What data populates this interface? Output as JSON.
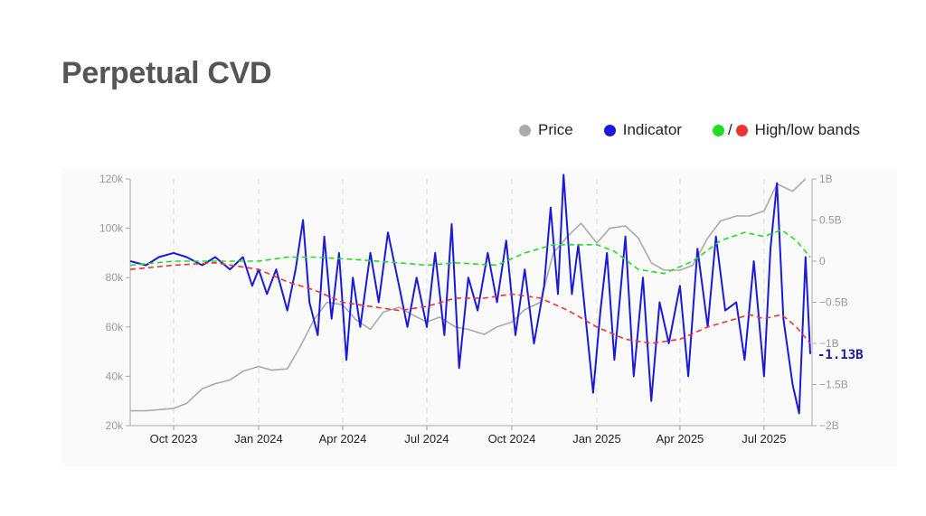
{
  "title": "Perpetual CVD",
  "legend": {
    "price": "Price",
    "indicator": "Indicator",
    "bands_sep": "/",
    "bands": "High/low bands",
    "colors": {
      "price": "#aaaaaa",
      "indicator": "#1a1adb",
      "high": "#22dd22",
      "low": "#ee3333"
    }
  },
  "chart_data": {
    "type": "line",
    "x_ticks": [
      "Oct 2023",
      "Jan 2024",
      "Apr 2024",
      "Jul 2024",
      "Oct 2024",
      "Jan 2025",
      "Apr 2025",
      "Jul 2025"
    ],
    "y_left_ticks": [
      "120k",
      "100k",
      "80k",
      "60k",
      "40k",
      "20k"
    ],
    "y_left_range": [
      20000,
      120000
    ],
    "y_right_ticks": [
      "1B",
      "0.5B",
      "0",
      "−0.5B",
      "−1B",
      "−1.5B",
      "−2B"
    ],
    "y_right_range": [
      -2,
      1
    ],
    "last_value_label": "-1.13B",
    "grid": "vertical dashed at month ticks",
    "series": [
      {
        "name": "Price",
        "axis": "left",
        "color": "#aaaaaa",
        "points": [
          [
            "2023-08-15",
            26000
          ],
          [
            "2023-09-01",
            26000
          ],
          [
            "2023-09-15",
            26500
          ],
          [
            "2023-10-01",
            27000
          ],
          [
            "2023-10-15",
            29000
          ],
          [
            "2023-11-01",
            35000
          ],
          [
            "2023-11-15",
            37000
          ],
          [
            "2023-12-01",
            38500
          ],
          [
            "2023-12-15",
            42000
          ],
          [
            "2024-01-01",
            44000
          ],
          [
            "2024-01-15",
            42500
          ],
          [
            "2024-02-01",
            43000
          ],
          [
            "2024-02-15",
            52000
          ],
          [
            "2024-03-01",
            63000
          ],
          [
            "2024-03-15",
            70000
          ],
          [
            "2024-04-01",
            69000
          ],
          [
            "2024-04-15",
            63000
          ],
          [
            "2024-05-01",
            59000
          ],
          [
            "2024-05-15",
            66000
          ],
          [
            "2024-06-01",
            68000
          ],
          [
            "2024-06-15",
            65000
          ],
          [
            "2024-07-01",
            62000
          ],
          [
            "2024-07-15",
            64000
          ],
          [
            "2024-08-01",
            60000
          ],
          [
            "2024-08-15",
            59000
          ],
          [
            "2024-09-01",
            57000
          ],
          [
            "2024-09-15",
            60000
          ],
          [
            "2024-10-01",
            62000
          ],
          [
            "2024-10-15",
            67000
          ],
          [
            "2024-11-01",
            70000
          ],
          [
            "2024-11-15",
            90000
          ],
          [
            "2024-12-01",
            97000
          ],
          [
            "2024-12-15",
            102000
          ],
          [
            "2025-01-01",
            94000
          ],
          [
            "2025-01-15",
            100000
          ],
          [
            "2025-02-01",
            101000
          ],
          [
            "2025-02-15",
            96000
          ],
          [
            "2025-03-01",
            86000
          ],
          [
            "2025-03-15",
            83000
          ],
          [
            "2025-04-01",
            83000
          ],
          [
            "2025-04-15",
            85000
          ],
          [
            "2025-05-01",
            96000
          ],
          [
            "2025-05-15",
            103000
          ],
          [
            "2025-06-01",
            105000
          ],
          [
            "2025-06-15",
            105000
          ],
          [
            "2025-07-01",
            107000
          ],
          [
            "2025-07-15",
            118000
          ],
          [
            "2025-08-01",
            115000
          ],
          [
            "2025-08-15",
            120000
          ]
        ]
      },
      {
        "name": "Indicator",
        "axis": "right",
        "color": "#1a1adb",
        "points": [
          [
            "2023-08-15",
            0
          ],
          [
            "2023-09-01",
            -0.05
          ],
          [
            "2023-09-15",
            0.05
          ],
          [
            "2023-10-01",
            0.1
          ],
          [
            "2023-10-15",
            0.05
          ],
          [
            "2023-11-01",
            -0.05
          ],
          [
            "2023-11-15",
            0.05
          ],
          [
            "2023-12-01",
            -0.1
          ],
          [
            "2023-12-15",
            0.05
          ],
          [
            "2023-12-25",
            -0.3
          ],
          [
            "2024-01-01",
            -0.1
          ],
          [
            "2024-01-10",
            -0.4
          ],
          [
            "2024-01-20",
            -0.1
          ],
          [
            "2024-02-01",
            -0.6
          ],
          [
            "2024-02-10",
            -0.1
          ],
          [
            "2024-02-18",
            0.5
          ],
          [
            "2024-02-25",
            -0.5
          ],
          [
            "2024-03-05",
            -0.9
          ],
          [
            "2024-03-12",
            0.3
          ],
          [
            "2024-03-20",
            -0.7
          ],
          [
            "2024-03-28",
            0.1
          ],
          [
            "2024-04-05",
            -1.2
          ],
          [
            "2024-04-12",
            -0.2
          ],
          [
            "2024-04-20",
            -0.8
          ],
          [
            "2024-05-01",
            0.1
          ],
          [
            "2024-05-10",
            -0.5
          ],
          [
            "2024-05-20",
            0.35
          ],
          [
            "2024-06-01",
            -0.3
          ],
          [
            "2024-06-10",
            -0.8
          ],
          [
            "2024-06-20",
            -0.2
          ],
          [
            "2024-07-01",
            -0.8
          ],
          [
            "2024-07-10",
            0.1
          ],
          [
            "2024-07-20",
            -0.9
          ],
          [
            "2024-07-28",
            0.45
          ],
          [
            "2024-08-05",
            -1.3
          ],
          [
            "2024-08-15",
            -0.2
          ],
          [
            "2024-08-25",
            -0.6
          ],
          [
            "2024-09-05",
            0.1
          ],
          [
            "2024-09-15",
            -0.5
          ],
          [
            "2024-09-25",
            0.25
          ],
          [
            "2024-10-05",
            -0.9
          ],
          [
            "2024-10-15",
            -0.1
          ],
          [
            "2024-10-25",
            -1.0
          ],
          [
            "2024-11-05",
            -0.3
          ],
          [
            "2024-11-12",
            0.65
          ],
          [
            "2024-11-20",
            -0.4
          ],
          [
            "2024-11-26",
            1.05
          ],
          [
            "2024-12-05",
            -0.4
          ],
          [
            "2024-12-12",
            0.2
          ],
          [
            "2024-12-20",
            -0.7
          ],
          [
            "2024-12-28",
            -1.6
          ],
          [
            "2025-01-05",
            -0.6
          ],
          [
            "2025-01-12",
            0.1
          ],
          [
            "2025-01-20",
            -1.2
          ],
          [
            "2025-02-01",
            0.3
          ],
          [
            "2025-02-10",
            -1.4
          ],
          [
            "2025-02-20",
            -0.2
          ],
          [
            "2025-03-01",
            -1.7
          ],
          [
            "2025-03-10",
            -0.5
          ],
          [
            "2025-03-20",
            -1.0
          ],
          [
            "2025-04-01",
            -0.3
          ],
          [
            "2025-04-10",
            -1.4
          ],
          [
            "2025-04-20",
            0.15
          ],
          [
            "2025-05-01",
            -0.8
          ],
          [
            "2025-05-10",
            0.3
          ],
          [
            "2025-05-20",
            -0.6
          ],
          [
            "2025-06-01",
            -0.5
          ],
          [
            "2025-06-10",
            -1.2
          ],
          [
            "2025-06-20",
            0.0
          ],
          [
            "2025-07-01",
            -1.4
          ],
          [
            "2025-07-08",
            0.15
          ],
          [
            "2025-07-15",
            0.95
          ],
          [
            "2025-07-22",
            -0.7
          ],
          [
            "2025-08-01",
            -1.5
          ],
          [
            "2025-08-08",
            -1.85
          ],
          [
            "2025-08-15",
            0.05
          ],
          [
            "2025-08-20",
            -1.13
          ]
        ]
      },
      {
        "name": "High band",
        "axis": "right",
        "color": "#22dd22",
        "points": [
          [
            "2023-08-15",
            -0.05
          ],
          [
            "2023-10-01",
            0.0
          ],
          [
            "2023-11-15",
            0.0
          ],
          [
            "2024-01-01",
            0.0
          ],
          [
            "2024-02-01",
            0.05
          ],
          [
            "2024-03-01",
            0.05
          ],
          [
            "2024-04-15",
            0.02
          ],
          [
            "2024-06-01",
            -0.02
          ],
          [
            "2024-07-01",
            -0.05
          ],
          [
            "2024-08-01",
            -0.02
          ],
          [
            "2024-09-15",
            -0.05
          ],
          [
            "2024-10-15",
            0.1
          ],
          [
            "2024-11-15",
            0.2
          ],
          [
            "2025-01-01",
            0.2
          ],
          [
            "2025-01-20",
            0.12
          ],
          [
            "2025-02-15",
            -0.1
          ],
          [
            "2025-03-15",
            -0.15
          ],
          [
            "2025-04-15",
            0.0
          ],
          [
            "2025-05-15",
            0.25
          ],
          [
            "2025-06-10",
            0.35
          ],
          [
            "2025-07-01",
            0.3
          ],
          [
            "2025-07-20",
            0.38
          ],
          [
            "2025-08-05",
            0.25
          ],
          [
            "2025-08-20",
            0.05
          ]
        ]
      },
      {
        "name": "Low band",
        "axis": "right",
        "color": "#ee3333",
        "points": [
          [
            "2023-08-15",
            -0.1
          ],
          [
            "2023-10-01",
            -0.05
          ],
          [
            "2023-11-15",
            -0.02
          ],
          [
            "2024-01-01",
            -0.1
          ],
          [
            "2024-02-01",
            -0.25
          ],
          [
            "2024-03-01",
            -0.35
          ],
          [
            "2024-04-01",
            -0.5
          ],
          [
            "2024-05-01",
            -0.55
          ],
          [
            "2024-06-01",
            -0.6
          ],
          [
            "2024-07-01",
            -0.55
          ],
          [
            "2024-08-01",
            -0.45
          ],
          [
            "2024-09-01",
            -0.45
          ],
          [
            "2024-10-01",
            -0.4
          ],
          [
            "2024-11-01",
            -0.45
          ],
          [
            "2024-12-01",
            -0.6
          ],
          [
            "2025-01-01",
            -0.8
          ],
          [
            "2025-02-01",
            -0.95
          ],
          [
            "2025-03-01",
            -1.0
          ],
          [
            "2025-04-01",
            -0.95
          ],
          [
            "2025-05-01",
            -0.8
          ],
          [
            "2025-06-01",
            -0.7
          ],
          [
            "2025-06-15",
            -0.65
          ],
          [
            "2025-07-01",
            -0.7
          ],
          [
            "2025-07-20",
            -0.65
          ],
          [
            "2025-08-05",
            -0.8
          ],
          [
            "2025-08-20",
            -1.0
          ]
        ]
      }
    ]
  }
}
